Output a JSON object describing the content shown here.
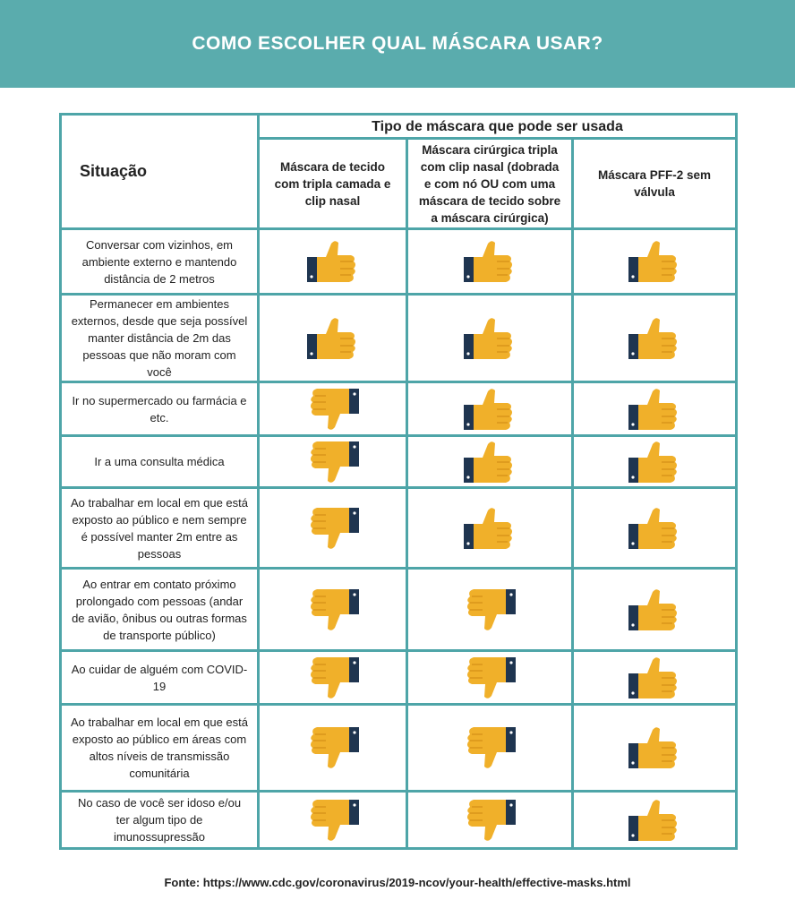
{
  "header": {
    "title": "COMO ESCOLHER QUAL MÁSCARA USAR?"
  },
  "table": {
    "situation_header": "Situação",
    "group_header": "Tipo de máscara que pode ser usada",
    "columns": [
      "Máscara de tecido com tripla camada e clip nasal",
      "Máscara cirúrgica tripla com clip nasal (dobrada e com nó OU com uma máscara de tecido sobre a máscara cirúrgica)",
      "Máscara PFF-2 sem válvula"
    ],
    "rows": [
      {
        "situation": "Conversar com vizinhos, em ambiente externo e mantendo distância de 2 metros"
      },
      {
        "situation": "Permanecer em ambientes externos, desde que seja possível manter distância de 2m das pessoas que não moram com você"
      },
      {
        "situation": "Ir no supermercado ou farmácia e etc."
      },
      {
        "situation": "Ir a uma consulta médica"
      },
      {
        "situation": "Ao trabalhar em local em que está exposto ao público e nem sempre é possível manter 2m entre as pessoas"
      },
      {
        "situation": "Ao entrar em contato próximo prolongado com pessoas (andar de avião, ônibus ou outras formas de transporte público)"
      },
      {
        "situation": "Ao cuidar de alguém com COVID-19"
      },
      {
        "situation": "Ao trabalhar em local em que está exposto ao público em áreas com altos níveis de transmissão comunitária"
      },
      {
        "situation": "No caso de você ser idoso e/ou ter algum tipo de imunossupressão"
      }
    ]
  },
  "source": "Fonte: https://www.cdc.gov/coronavirus/2019-ncov/your-health/effective-masks.html"
}
